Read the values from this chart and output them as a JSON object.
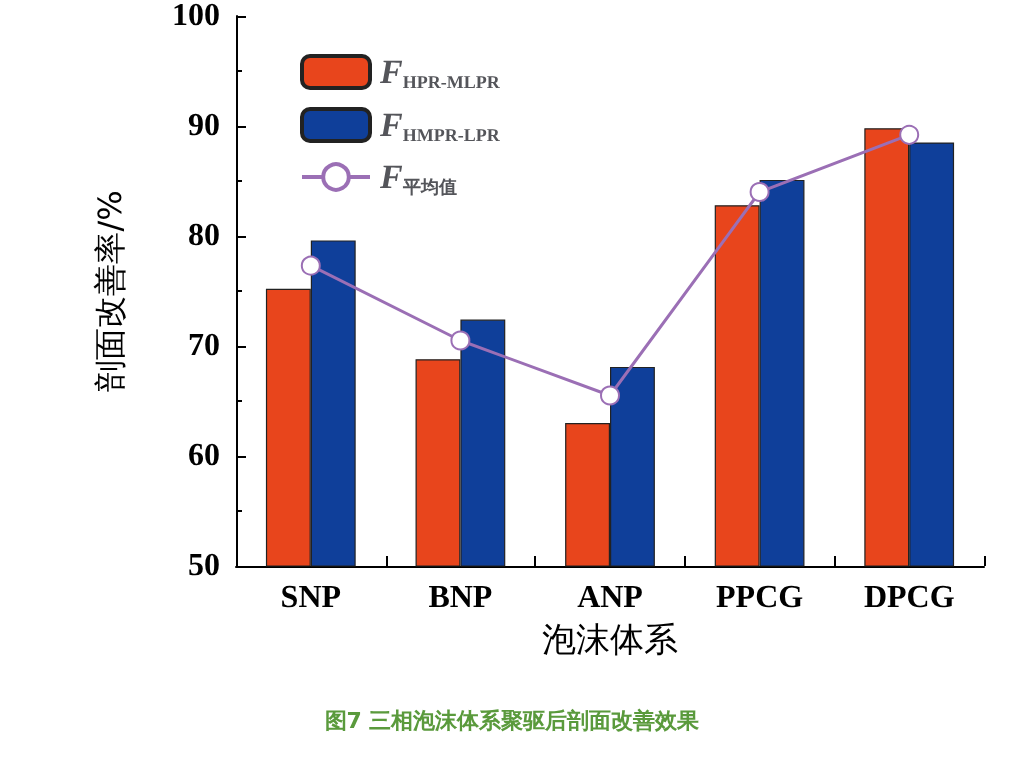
{
  "chart_data": {
    "type": "bar",
    "xlabel": "泡沫体系",
    "ylabel": "剖面改善率/%",
    "categories": [
      "SNP",
      "BNP",
      "ANP",
      "PPCG",
      "DPCG"
    ],
    "series": [
      {
        "name": "F$_{HPR-MLPR}$",
        "color": "#e8451c",
        "values": [
          75.2,
          68.8,
          63.0,
          82.8,
          89.8
        ]
      },
      {
        "name": "F$_{HMPR-LPR}$",
        "color": "#0f3f9a",
        "values": [
          79.6,
          72.4,
          68.1,
          85.1,
          88.5
        ]
      },
      {
        "name": "F$_{平均值}$",
        "type": "line",
        "color": "#9b6fb5",
        "marker": "circle",
        "values": [
          77.3,
          70.5,
          65.5,
          84.0,
          89.2
        ]
      }
    ],
    "ylim": [
      50,
      100
    ],
    "yticks": [
      50,
      60,
      70,
      80,
      90,
      100
    ],
    "grid": false,
    "legend": "top left",
    "annotations": [
      "图7 三相泡沫体系聚驱后剖面改善效果"
    ]
  }
}
